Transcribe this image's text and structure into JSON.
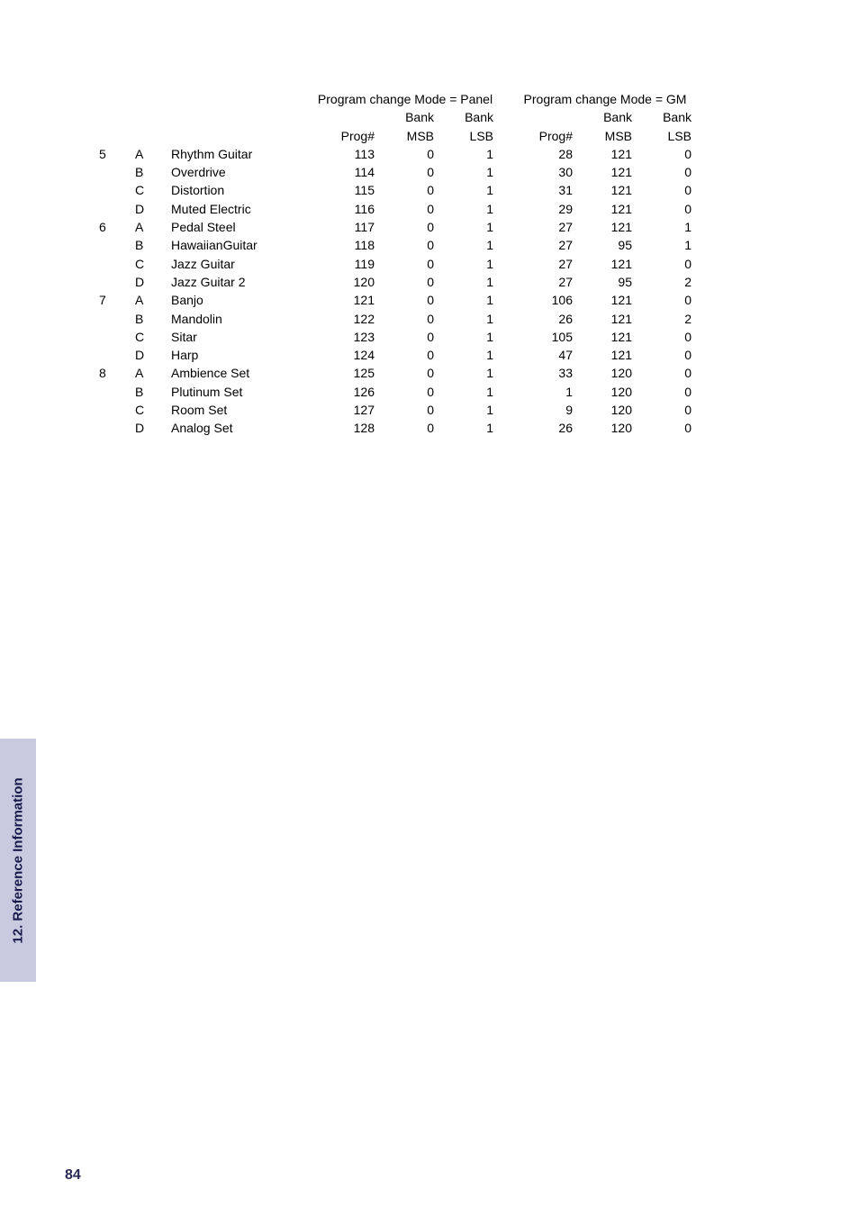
{
  "sidebar": {
    "label": "12. Reference Information"
  },
  "page_number": "84",
  "header": {
    "panel_title": "Program change Mode = Panel",
    "gm_title": "Program change Mode = GM",
    "bank": "Bank",
    "prog": "Prog#",
    "msb": "MSB",
    "lsb": "LSB"
  },
  "rows": [
    {
      "g": "5",
      "v": "A",
      "name": "Rhythm Guitar",
      "p1": "113",
      "m1": "0",
      "l1": "1",
      "p2": "28",
      "m2": "121",
      "l2": "0"
    },
    {
      "g": "",
      "v": "B",
      "name": "Overdrive",
      "p1": "114",
      "m1": "0",
      "l1": "1",
      "p2": "30",
      "m2": "121",
      "l2": "0"
    },
    {
      "g": "",
      "v": "C",
      "name": "Distortion",
      "p1": "115",
      "m1": "0",
      "l1": "1",
      "p2": "31",
      "m2": "121",
      "l2": "0"
    },
    {
      "g": "",
      "v": "D",
      "name": "Muted Electric",
      "p1": "116",
      "m1": "0",
      "l1": "1",
      "p2": "29",
      "m2": "121",
      "l2": "0"
    },
    {
      "g": "6",
      "v": "A",
      "name": "Pedal Steel",
      "p1": "117",
      "m1": "0",
      "l1": "1",
      "p2": "27",
      "m2": "121",
      "l2": "1"
    },
    {
      "g": "",
      "v": "B",
      "name": "HawaiianGuitar",
      "p1": "118",
      "m1": "0",
      "l1": "1",
      "p2": "27",
      "m2": "95",
      "l2": "1"
    },
    {
      "g": "",
      "v": "C",
      "name": "Jazz Guitar",
      "p1": "119",
      "m1": "0",
      "l1": "1",
      "p2": "27",
      "m2": "121",
      "l2": "0"
    },
    {
      "g": "",
      "v": "D",
      "name": "Jazz Guitar 2",
      "p1": "120",
      "m1": "0",
      "l1": "1",
      "p2": "27",
      "m2": "95",
      "l2": "2"
    },
    {
      "g": "7",
      "v": "A",
      "name": "Banjo",
      "p1": "121",
      "m1": "0",
      "l1": "1",
      "p2": "106",
      "m2": "121",
      "l2": "0"
    },
    {
      "g": "",
      "v": "B",
      "name": "Mandolin",
      "p1": "122",
      "m1": "0",
      "l1": "1",
      "p2": "26",
      "m2": "121",
      "l2": "2"
    },
    {
      "g": "",
      "v": "C",
      "name": "Sitar",
      "p1": "123",
      "m1": "0",
      "l1": "1",
      "p2": "105",
      "m2": "121",
      "l2": "0"
    },
    {
      "g": "",
      "v": "D",
      "name": "Harp",
      "p1": "124",
      "m1": "0",
      "l1": "1",
      "p2": "47",
      "m2": "121",
      "l2": "0"
    },
    {
      "g": "8",
      "v": "A",
      "name": "Ambience Set",
      "p1": "125",
      "m1": "0",
      "l1": "1",
      "p2": "33",
      "m2": "120",
      "l2": "0"
    },
    {
      "g": "",
      "v": "B",
      "name": "Plutinum Set",
      "p1": "126",
      "m1": "0",
      "l1": "1",
      "p2": "1",
      "m2": "120",
      "l2": "0"
    },
    {
      "g": "",
      "v": "C",
      "name": "Room Set",
      "p1": "127",
      "m1": "0",
      "l1": "1",
      "p2": "9",
      "m2": "120",
      "l2": "0"
    },
    {
      "g": "",
      "v": "D",
      "name": "Analog Set",
      "p1": "128",
      "m1": "0",
      "l1": "1",
      "p2": "26",
      "m2": "120",
      "l2": "0"
    }
  ]
}
